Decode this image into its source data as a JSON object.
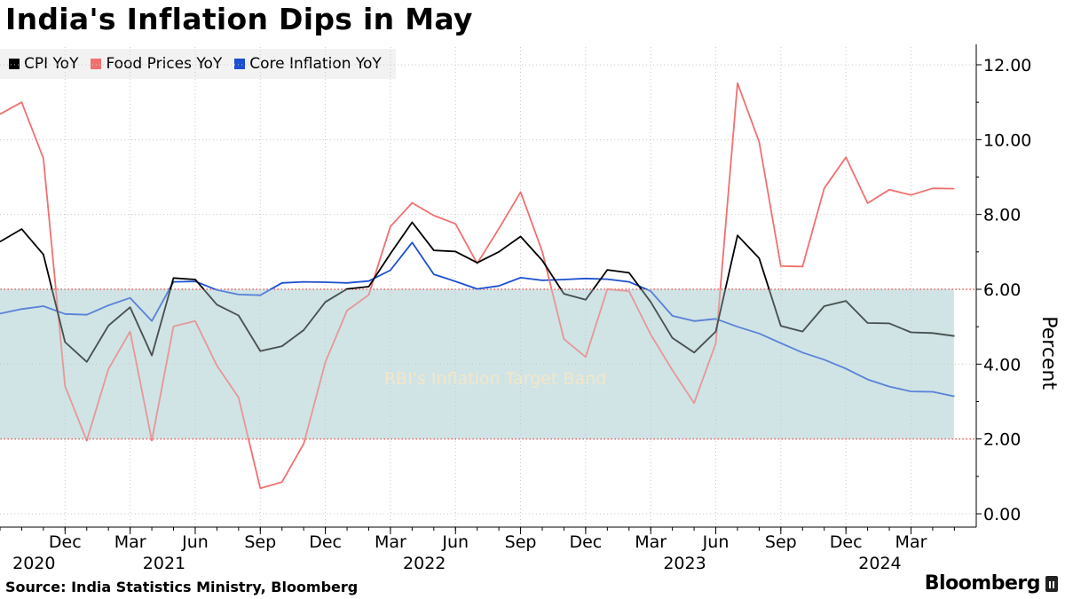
{
  "title": "India's Inflation Dips in May",
  "source": "Source: India Statistics Ministry, Bloomberg",
  "brand": "Bloomberg",
  "colors": {
    "cpi": "#000000",
    "food": "#f07070",
    "core": "#1c4fd0",
    "band": "#d0e4e6",
    "bandLine": "#ff5a5a"
  },
  "legend": [
    {
      "label": "CPI YoY",
      "color": "#000000"
    },
    {
      "label": "Food Prices YoY",
      "color": "#f07070"
    },
    {
      "label": "Core Inflation YoY",
      "color": "#1c4fd0"
    }
  ],
  "chart_data": {
    "type": "line",
    "title": "India's Inflation Dips in May",
    "ylabel": "Percent",
    "ylim": [
      0,
      12
    ],
    "yticks": [
      "0.00",
      "2.00",
      "4.00",
      "6.00",
      "8.00",
      "10.00",
      "12.00"
    ],
    "xticks": [
      {
        "month": "Dec",
        "year": "2020"
      },
      {
        "month": "Mar",
        "year": ""
      },
      {
        "month": "Jun",
        "year": "2021"
      },
      {
        "month": "Sep",
        "year": ""
      },
      {
        "month": "Dec",
        "year": ""
      },
      {
        "month": "Mar",
        "year": ""
      },
      {
        "month": "Jun",
        "year": "2022"
      },
      {
        "month": "Sep",
        "year": ""
      },
      {
        "month": "Dec",
        "year": ""
      },
      {
        "month": "Mar",
        "year": ""
      },
      {
        "month": "Jun",
        "year": "2023"
      },
      {
        "month": "Sep",
        "year": ""
      },
      {
        "month": "Dec",
        "year": ""
      },
      {
        "month": "Mar",
        "year": "2024"
      }
    ],
    "band": {
      "low": 2,
      "high": 6,
      "label": "RBI's Inflation Target Band"
    },
    "x": [
      "2020-09",
      "2020-10",
      "2020-11",
      "2020-12",
      "2021-01",
      "2021-02",
      "2021-03",
      "2021-04",
      "2021-05",
      "2021-06",
      "2021-07",
      "2021-08",
      "2021-09",
      "2021-10",
      "2021-11",
      "2021-12",
      "2022-01",
      "2022-02",
      "2022-03",
      "2022-04",
      "2022-05",
      "2022-06",
      "2022-07",
      "2022-08",
      "2022-09",
      "2022-10",
      "2022-11",
      "2022-12",
      "2023-01",
      "2023-02",
      "2023-03",
      "2023-04",
      "2023-05",
      "2023-06",
      "2023-07",
      "2023-08",
      "2023-09",
      "2023-10",
      "2023-11",
      "2023-12",
      "2024-01",
      "2024-02",
      "2024-03",
      "2024-04",
      "2024-05"
    ],
    "series": [
      {
        "name": "CPI YoY",
        "values": [
          7.27,
          7.61,
          6.93,
          4.59,
          4.06,
          5.03,
          5.52,
          4.23,
          6.3,
          6.26,
          5.59,
          5.3,
          4.35,
          4.48,
          4.91,
          5.66,
          6.01,
          6.07,
          6.95,
          7.79,
          7.04,
          7.01,
          6.71,
          7.0,
          7.41,
          6.77,
          5.88,
          5.72,
          6.52,
          6.44,
          5.66,
          4.7,
          4.31,
          4.87,
          7.44,
          6.83,
          5.02,
          4.87,
          5.55,
          5.69,
          5.1,
          5.09,
          4.85,
          4.83,
          4.75
        ]
      },
      {
        "name": "Food Prices YoY",
        "values": [
          10.68,
          11.0,
          9.5,
          3.41,
          1.96,
          3.87,
          4.87,
          1.96,
          5.01,
          5.15,
          3.96,
          3.11,
          0.68,
          0.85,
          1.87,
          4.05,
          5.43,
          5.85,
          7.68,
          8.31,
          7.97,
          7.75,
          6.69,
          7.62,
          8.6,
          7.01,
          4.67,
          4.19,
          6.0,
          5.95,
          4.79,
          3.84,
          2.96,
          4.55,
          11.51,
          9.94,
          6.62,
          6.61,
          8.7,
          9.53,
          8.3,
          8.66,
          8.52,
          8.7,
          8.69
        ]
      },
      {
        "name": "Core Inflation YoY",
        "values": [
          5.35,
          5.47,
          5.55,
          5.34,
          5.32,
          5.57,
          5.77,
          5.15,
          6.2,
          6.21,
          5.98,
          5.86,
          5.84,
          6.17,
          6.2,
          6.19,
          6.17,
          6.22,
          6.51,
          7.25,
          6.4,
          6.21,
          6.01,
          6.09,
          6.31,
          6.24,
          6.26,
          6.29,
          6.27,
          6.2,
          5.95,
          5.29,
          5.15,
          5.21,
          5.0,
          4.82,
          4.56,
          4.31,
          4.12,
          3.88,
          3.59,
          3.4,
          3.27,
          3.26,
          3.14
        ]
      }
    ]
  }
}
